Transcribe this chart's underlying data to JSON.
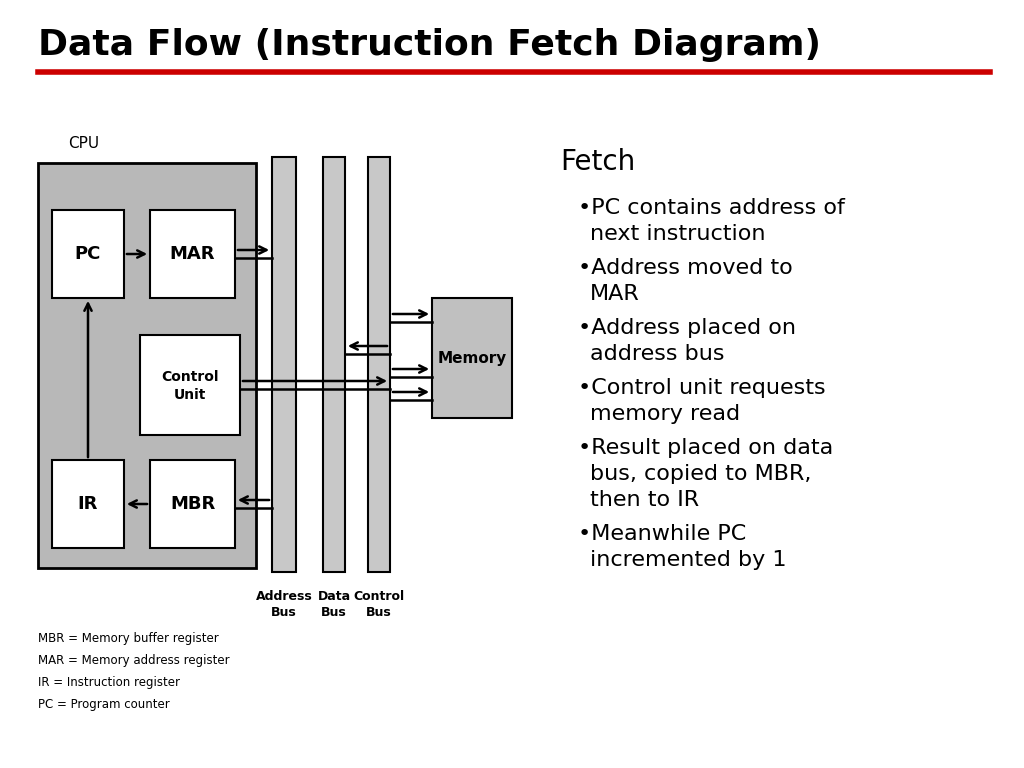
{
  "title": "Data Flow (Instruction Fetch Diagram)",
  "title_color": "#000000",
  "title_fontsize": 26,
  "title_fontweight": "bold",
  "underline_color": "#cc0000",
  "bg_color": "#ffffff",
  "cpu_box_color": "#b8b8b8",
  "memory_box_color": "#c0c0c0",
  "bus_color": "#c8c8c8",
  "text_color": "#000000",
  "bullet_points": [
    [
      "PC contains address of",
      "next instruction"
    ],
    [
      "Address moved to",
      "MAR"
    ],
    [
      "Address placed on",
      "address bus"
    ],
    [
      "Control unit requests",
      "memory read"
    ],
    [
      "Result placed on data",
      "bus, copied to MBR,",
      "then to IR"
    ],
    [
      "Meanwhile PC",
      "incremented by 1"
    ]
  ],
  "legend_lines": [
    "MBR = Memory buffer register",
    "MAR = Memory address register",
    "IR = Instruction register",
    "PC = Program counter"
  ]
}
